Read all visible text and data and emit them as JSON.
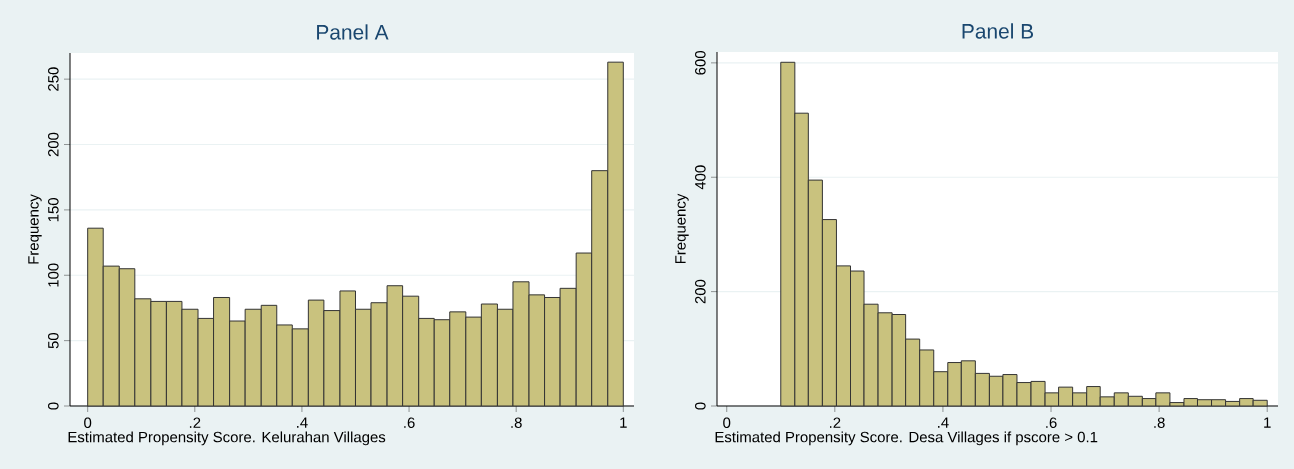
{
  "chart_data": [
    {
      "type": "histogram",
      "title": "Panel A",
      "xlabel": "Estimated Propensity Score. Kelurahan Villages",
      "ylabel": "Frequency",
      "color": "#c9c27e",
      "grid": "y",
      "bins": [
        0,
        0.029,
        0.059,
        0.088,
        0.118,
        0.147,
        0.176,
        0.206,
        0.235,
        0.265,
        0.294,
        0.324,
        0.353,
        0.382,
        0.412,
        0.441,
        0.471,
        0.5,
        0.529,
        0.559,
        0.588,
        0.618,
        0.647,
        0.676,
        0.706,
        0.735,
        0.765,
        0.794,
        0.824,
        0.853,
        0.882,
        0.912,
        0.941,
        0.971,
        1
      ],
      "values": [
        136,
        107,
        105,
        82,
        80,
        80,
        74,
        67,
        83,
        65,
        74,
        77,
        62,
        59,
        81,
        73,
        88,
        74,
        79,
        92,
        84,
        67,
        66,
        72,
        68,
        78,
        74,
        95,
        85,
        83,
        90,
        117,
        180,
        263
      ],
      "xlim": [
        -0.033,
        1.02
      ],
      "ylim": [
        0,
        270
      ],
      "xticks": [
        0,
        {
          "value": 0.2,
          "label": ".2"
        },
        {
          "value": 0.4,
          "label": ".4"
        },
        {
          "value": 0.6,
          "label": ".6"
        },
        {
          "value": 0.8,
          "label": ".8"
        },
        1
      ],
      "yticks": [
        0,
        50,
        100,
        150,
        200,
        250
      ]
    },
    {
      "type": "histogram",
      "title": "Panel B",
      "xlabel": "Estimated Propensity Score. Desa Villages if pscore > 0.1",
      "ylabel": "Frequency",
      "color": "#c9c27e",
      "grid": "y",
      "bins": [
        0.1,
        0.126,
        0.151,
        0.177,
        0.203,
        0.229,
        0.254,
        0.28,
        0.306,
        0.331,
        0.357,
        0.383,
        0.409,
        0.434,
        0.46,
        0.486,
        0.511,
        0.537,
        0.563,
        0.589,
        0.614,
        0.64,
        0.666,
        0.691,
        0.717,
        0.743,
        0.769,
        0.794,
        0.82,
        0.846,
        0.871,
        0.897,
        0.923,
        0.949,
        0.974,
        1
      ],
      "values": [
        601,
        512,
        395,
        326,
        245,
        236,
        178,
        163,
        160,
        117,
        98,
        60,
        76,
        79,
        57,
        52,
        55,
        41,
        43,
        23,
        33,
        23,
        34,
        16,
        23,
        17,
        13,
        23,
        6,
        13,
        11,
        11,
        8,
        13,
        10
      ],
      "xlim": [
        -0.018,
        1.02
      ],
      "ylim": [
        0,
        619
      ],
      "xticks": [
        0,
        {
          "value": 0.2,
          "label": ".2"
        },
        {
          "value": 0.4,
          "label": ".4"
        },
        {
          "value": 0.6,
          "label": ".6"
        },
        {
          "value": 0.8,
          "label": ".8"
        },
        1
      ],
      "yticks": [
        0,
        200,
        400,
        600
      ]
    }
  ]
}
